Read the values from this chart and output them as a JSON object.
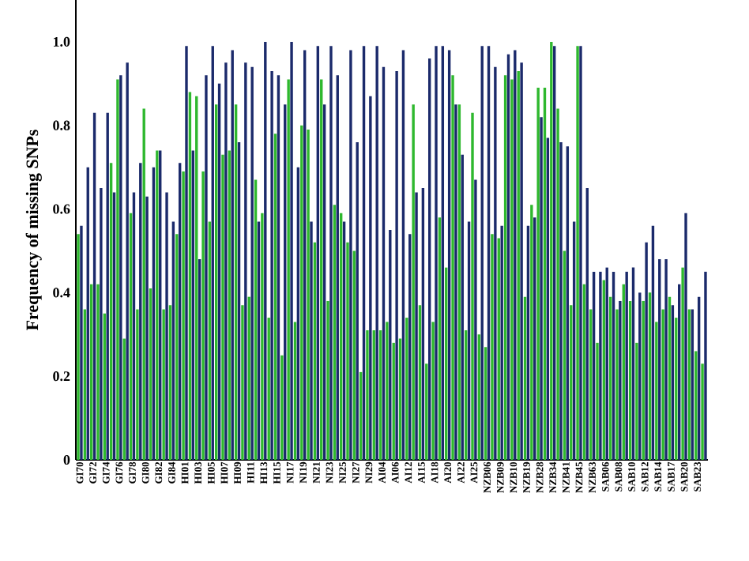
{
  "chart_data": {
    "type": "bar",
    "ylabel": "Frequency of missing SNPs",
    "categories": [
      "GI70",
      null,
      "GI72",
      null,
      "GI74",
      null,
      "GI76",
      null,
      "GI78",
      null,
      "GI80",
      null,
      "GI82",
      null,
      "GI84",
      null,
      "HI01",
      null,
      "HI03",
      null,
      "HI05",
      null,
      "HI07",
      null,
      "HI09",
      null,
      "HI11",
      null,
      "HI13",
      null,
      "HI15",
      null,
      "NI17",
      null,
      "NI19",
      null,
      "NI21",
      null,
      "NI23",
      null,
      "NI25",
      null,
      "NI27",
      null,
      "NI29",
      null,
      "AI04",
      null,
      "AI06",
      null,
      "AI12",
      null,
      "AI15",
      null,
      "AI18",
      null,
      "AI20",
      null,
      "AI22",
      null,
      "AI25",
      null,
      "NZB06",
      null,
      "NZB09",
      null,
      "NZB10",
      null,
      "NZB19",
      null,
      "NZB28",
      null,
      "NZB34",
      null,
      "NZB41",
      null,
      "NZB45",
      null,
      "NZB63",
      null,
      "SAB06",
      null,
      "SAB08",
      null,
      "SAB10",
      null,
      "SAB12",
      null,
      "SAB14",
      null,
      "SAB17",
      null,
      "SAB20",
      null,
      "SAB23",
      null
    ],
    "series": [
      {
        "color": "#2eb82e",
        "values": [
          0.54,
          0.36,
          0.42,
          0.42,
          0.35,
          0.71,
          0.91,
          0.29,
          0.59,
          0.36,
          0.84,
          0.41,
          0.74,
          0.36,
          0.37,
          0.54,
          0.69,
          0.88,
          0.87,
          0.69,
          0.57,
          0.85,
          0.73,
          0.74,
          0.85,
          0.37,
          0.39,
          0.67,
          0.59,
          0.34,
          0.78,
          0.25,
          0.91,
          0.33,
          0.8,
          0.79,
          0.52,
          0.91,
          0.38,
          0.61,
          0.59,
          0.52,
          0.5,
          0.21,
          0.31,
          0.31,
          0.31,
          0.33,
          0.28,
          0.29,
          0.34,
          0.85,
          0.37,
          0.23,
          0.33,
          0.58,
          0.46,
          0.92,
          0.85,
          0.31,
          0.83,
          0.3,
          0.27,
          0.54,
          0.53,
          0.92,
          0.91,
          0.93,
          0.39,
          0.61,
          0.89,
          0.89,
          1.0,
          0.84,
          0.5,
          0.37,
          0.99,
          0.42,
          0.36,
          0.28,
          0.43,
          0.39,
          0.36,
          0.42,
          0.38,
          0.28,
          0.38,
          0.4,
          0.33,
          0.36,
          0.39,
          0.34,
          0.46,
          0.36,
          0.26,
          0.23
        ]
      },
      {
        "color": "#1b2a6b",
        "values": [
          0.56,
          0.7,
          0.83,
          0.65,
          0.83,
          0.64,
          0.92,
          0.95,
          0.64,
          0.71,
          0.63,
          0.7,
          0.74,
          0.64,
          0.57,
          0.71,
          0.99,
          0.74,
          0.48,
          0.92,
          0.99,
          0.9,
          0.95,
          0.98,
          0.76,
          0.95,
          0.94,
          0.57,
          1.0,
          0.93,
          0.92,
          0.85,
          1.0,
          0.7,
          0.98,
          0.57,
          0.99,
          0.85,
          0.99,
          0.92,
          0.57,
          0.98,
          0.76,
          0.99,
          0.87,
          0.99,
          0.94,
          0.55,
          0.93,
          0.98,
          0.54,
          0.64,
          0.65,
          0.96,
          0.99,
          0.99,
          0.98,
          0.85,
          0.73,
          0.57,
          0.67,
          0.99,
          0.99,
          0.94,
          0.56,
          0.97,
          0.98,
          0.95,
          0.56,
          0.58,
          0.82,
          0.77,
          0.99,
          0.76,
          0.75,
          0.57,
          0.99,
          0.65,
          0.45,
          0.45,
          0.46,
          0.45,
          0.38,
          0.45,
          0.46,
          0.4,
          0.52,
          0.56,
          0.48,
          0.48,
          0.37,
          0.42,
          0.59,
          0.36,
          0.39,
          0.45
        ]
      }
    ],
    "ylim": [
      0,
      1.1
    ],
    "yticks": [
      0,
      0.2,
      0.4,
      0.6,
      0.8,
      {
        "value": 1,
        "label": "1.0"
      }
    ],
    "grid": false
  }
}
